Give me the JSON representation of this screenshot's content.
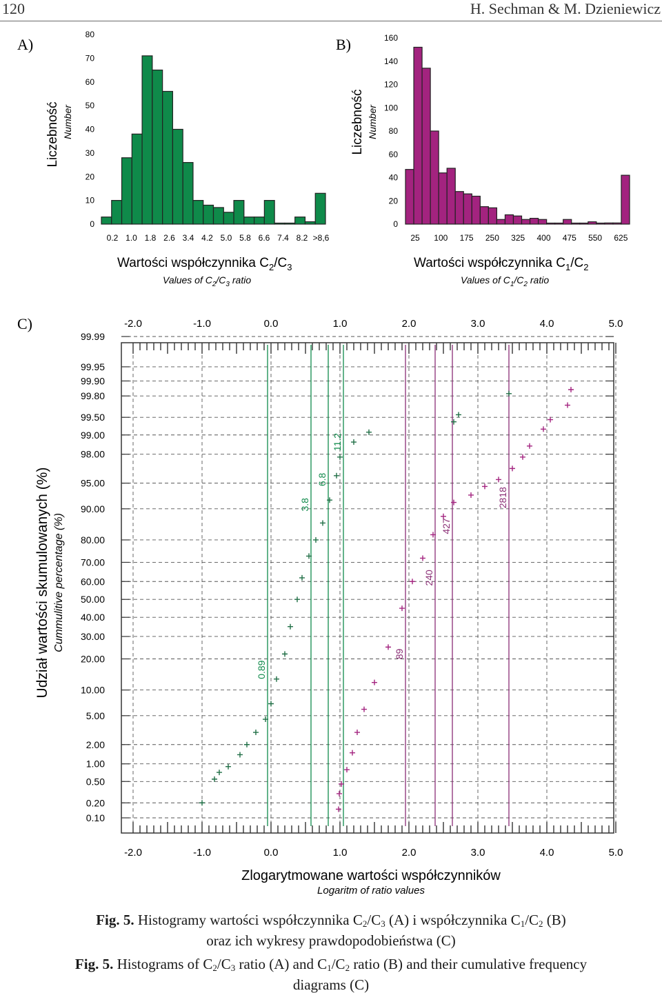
{
  "header": {
    "page_number": "120",
    "authors": "H. Sechman & M. Dzieniewicz"
  },
  "panels": {
    "a": "A)",
    "b": "B)",
    "c": "C)"
  },
  "colors": {
    "green": "#0f8a4a",
    "green_dark": "#1f6e45",
    "magenta": "#a3237f",
    "grid": "#555555"
  },
  "chart_data": [
    {
      "type": "bar",
      "panel": "A",
      "ylabel": "Liczebność",
      "ylabel_en": "Number",
      "xlabel_pl": "Wartości współczynnika C₂/C₃",
      "xlabel_en": "Values of C₂/C₃ ratio",
      "ylim": [
        0,
        80
      ],
      "yticks": [
        0,
        10,
        20,
        30,
        40,
        50,
        60,
        70,
        80
      ],
      "xtick_labels": [
        "0.2",
        "1.0",
        "1.8",
        "2.6",
        "3.4",
        "4.2",
        "5.0",
        "5.8",
        "6.6",
        "7.4",
        "8.2",
        ">8,6"
      ],
      "values": [
        3,
        10,
        28,
        38,
        71,
        65,
        56,
        40,
        26,
        10,
        8,
        7,
        5,
        10,
        3,
        3,
        10,
        0,
        0,
        3,
        1,
        13
      ]
    },
    {
      "type": "bar",
      "panel": "B",
      "ylabel": "Liczebność",
      "ylabel_en": "Number",
      "xlabel_pl": "Wartości współczynnika C₁/C₂",
      "xlabel_en": "Values of C₁/C₂ ratio",
      "ylim": [
        0,
        160
      ],
      "yticks": [
        0,
        20,
        40,
        60,
        80,
        100,
        120,
        140,
        160
      ],
      "xtick_labels": [
        "25",
        "100",
        "175",
        "250",
        "325",
        "400",
        "475",
        "550",
        "625"
      ],
      "values": [
        47,
        152,
        134,
        80,
        44,
        48,
        28,
        26,
        24,
        15,
        14,
        4,
        8,
        7,
        4,
        5,
        4,
        0,
        0,
        4,
        0,
        0,
        2,
        0,
        1,
        1,
        42
      ]
    },
    {
      "type": "scatter",
      "panel": "C",
      "ylabel_pl": "Udział wartości skumulowanych (%)",
      "ylabel_en": "Cummulitive percentage (%)",
      "xlabel_pl": "Zlogarytmowane wartości współczynników",
      "xlabel_en": "Logaritm of ratio values",
      "xlim": [
        -2.0,
        5.0
      ],
      "xticks": [
        "-2.0",
        "-1.0",
        "0.0",
        "1.0",
        "2.0",
        "3.0",
        "4.0",
        "5.0"
      ],
      "yticks": [
        "0.10",
        "0.20",
        "0.50",
        "1.00",
        "2.00",
        "5.00",
        "10.00",
        "20.00",
        "30.00",
        "40.00",
        "50.00",
        "60.00",
        "70.00",
        "80.00",
        "90.00",
        "95.00",
        "98.00",
        "99.00",
        "99.50",
        "99.80",
        "99.90",
        "99.95",
        "99.99"
      ],
      "series": [
        {
          "name": "C2/C3",
          "color": "#1f6e45",
          "points": [
            [
              -1.0,
              0.2
            ],
            [
              -0.82,
              0.55
            ],
            [
              -0.75,
              0.72
            ],
            [
              -0.62,
              0.9
            ],
            [
              -0.45,
              1.4
            ],
            [
              -0.35,
              2.0
            ],
            [
              -0.22,
              3.0
            ],
            [
              -0.08,
              4.5
            ],
            [
              0.0,
              7.0
            ],
            [
              0.08,
              13.0
            ],
            [
              0.2,
              22.0
            ],
            [
              0.28,
              35.0
            ],
            [
              0.38,
              50.0
            ],
            [
              0.45,
              62.0
            ],
            [
              0.55,
              73.0
            ],
            [
              0.65,
              80.0
            ],
            [
              0.75,
              86.0
            ],
            [
              0.85,
              92.0
            ],
            [
              0.95,
              96.0
            ],
            [
              1.0,
              97.8
            ],
            [
              1.2,
              98.7
            ],
            [
              1.42,
              99.1
            ],
            [
              2.65,
              99.4
            ],
            [
              2.72,
              99.55
            ],
            [
              3.45,
              99.82
            ]
          ]
        },
        {
          "name": "C1/C2",
          "color": "#a3237f",
          "points": [
            [
              0.98,
              0.15
            ],
            [
              0.99,
              0.3
            ],
            [
              1.02,
              0.45
            ],
            [
              1.1,
              0.8
            ],
            [
              1.18,
              1.5
            ],
            [
              1.25,
              3.0
            ],
            [
              1.35,
              6.0
            ],
            [
              1.5,
              12.0
            ],
            [
              1.7,
              25.0
            ],
            [
              1.9,
              45.0
            ],
            [
              2.05,
              60.0
            ],
            [
              2.2,
              72.0
            ],
            [
              2.35,
              82.0
            ],
            [
              2.5,
              88.0
            ],
            [
              2.65,
              91.5
            ],
            [
              2.9,
              93.0
            ],
            [
              3.1,
              94.5
            ],
            [
              3.3,
              95.5
            ],
            [
              3.5,
              96.8
            ],
            [
              3.65,
              97.8
            ],
            [
              3.75,
              98.5
            ],
            [
              3.95,
              99.2
            ],
            [
              4.05,
              99.45
            ],
            [
              4.3,
              99.7
            ],
            [
              4.35,
              99.85
            ]
          ]
        }
      ],
      "vertical_lines": [
        {
          "x": -0.05,
          "label": "0.89",
          "color": "#0f8a4a",
          "label_y": 16.0
        },
        {
          "x": 0.58,
          "label": "3.8",
          "color": "#0f8a4a",
          "label_y": 91.0
        },
        {
          "x": 0.83,
          "label": "6.8",
          "color": "#0f8a4a",
          "label_y": 95.5
        },
        {
          "x": 1.05,
          "label": "11.2",
          "color": "#0f8a4a",
          "label_y": 98.7
        },
        {
          "x": 1.95,
          "label": "89",
          "color": "#8a2d75",
          "label_y": 22.0
        },
        {
          "x": 2.38,
          "label": "240",
          "color": "#8a2d75",
          "label_y": 62.0
        },
        {
          "x": 2.63,
          "label": "427",
          "color": "#8a2d75",
          "label_y": 85.0
        },
        {
          "x": 3.45,
          "label": "2818",
          "color": "#8a2d75",
          "label_y": 92.5
        }
      ]
    }
  ],
  "captions": {
    "pl_prefix": "Fig. 5.",
    "pl_line1": "Histogramy wartości współczynnika C₂/C₃ (A) i współczynnika C₁/C₂ (B)",
    "pl_line2": "oraz ich wykresy prawdopodobieństwa (C)",
    "en_prefix": "Fig. 5.",
    "en_line1": "Histograms of C₂/C₃ ratio (A) and C₁/C₂ ratio (B) and their cumulative frequency",
    "en_line2": "diagrams (C)"
  }
}
